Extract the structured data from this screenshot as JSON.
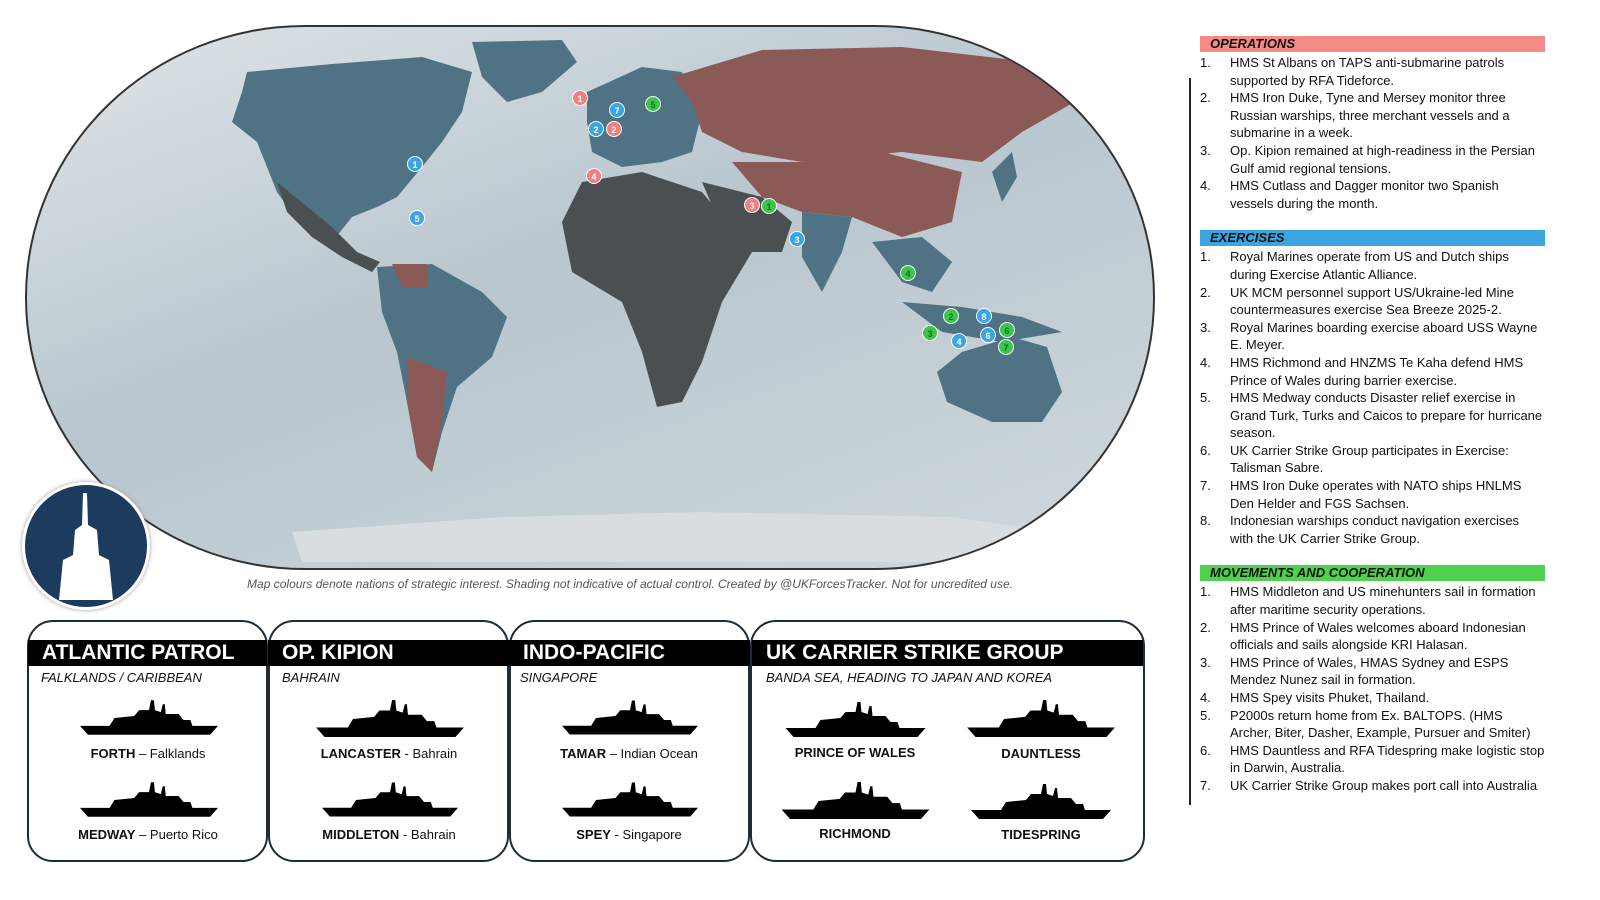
{
  "map": {
    "caption": "Map colours denote nations of strategic interest. Shading not indicative of actual control. Created by @UKForcesTracker. Not for uncredited use.",
    "markers_operations": [
      "1",
      "2",
      "3",
      "4"
    ],
    "markers_exercises": [
      "1",
      "2",
      "3",
      "4",
      "5",
      "6",
      "7",
      "8"
    ],
    "markers_movements": [
      "1",
      "2",
      "3",
      "4",
      "5",
      "6",
      "7"
    ],
    "colors": {
      "operations": "#f07f7f",
      "exercises": "#3aa5e0",
      "movements": "#3ec44a",
      "allied": "#4f7384",
      "neutral": "#4a4f52",
      "adversary": "#8b5a56"
    }
  },
  "cards": [
    {
      "title": "ATLANTIC PATROL",
      "subtitle": "FALKLANDS / CARIBBEAN",
      "ships": [
        {
          "name": "FORTH",
          "loc": " – Falklands"
        },
        {
          "name": "MEDWAY",
          "loc": " – Puerto Rico"
        }
      ]
    },
    {
      "title": "OP. KIPION",
      "subtitle": "BAHRAIN",
      "ships": [
        {
          "name": "LANCASTER",
          "loc": " - Bahrain"
        },
        {
          "name": "MIDDLETON",
          "loc": " - Bahrain"
        }
      ]
    },
    {
      "title": "INDO-PACIFIC",
      "subtitle": "SINGAPORE",
      "ships": [
        {
          "name": "TAMAR",
          "loc": " – Indian Ocean"
        },
        {
          "name": "SPEY",
          "loc": " - Singapore"
        }
      ]
    },
    {
      "title": "UK CARRIER STRIKE GROUP",
      "subtitle": "BANDA SEA, HEADING TO JAPAN AND KOREA",
      "ships": [
        {
          "name": "PRINCE OF WALES",
          "loc": ""
        },
        {
          "name": "DAUNTLESS",
          "loc": ""
        },
        {
          "name": "RICHMOND",
          "loc": ""
        },
        {
          "name": "TIDESPRING",
          "loc": ""
        }
      ]
    }
  ],
  "panel": {
    "operations": {
      "title": "OPERATIONS",
      "items": [
        "HMS St Albans on TAPS anti-submarine patrols supported by RFA Tideforce.",
        "HMS Iron Duke, Tyne and Mersey monitor three Russian warships, three merchant vessels and a submarine in a week.",
        "Op. Kipion remained at high-readiness in the Persian Gulf amid regional tensions.",
        "HMS Cutlass and Dagger monitor two Spanish vessels during the month."
      ]
    },
    "exercises": {
      "title": "EXERCISES",
      "items": [
        "Royal Marines operate from US and Dutch ships during Exercise Atlantic Alliance.",
        "UK MCM personnel support US/Ukraine-led Mine countermeasures exercise Sea Breeze 2025-2.",
        "Royal Marines boarding exercise aboard USS Wayne E. Meyer.",
        "HMS Richmond and HNZMS Te Kaha defend HMS Prince of Wales during barrier exercise.",
        "HMS Medway conducts Disaster relief exercise in Grand Turk, Turks and Caicos to prepare for hurricane season.",
        "UK Carrier Strike Group participates in Exercise: Talisman Sabre.",
        "HMS Iron Duke operates with NATO ships HNLMS Den Helder and FGS Sachsen.",
        "Indonesian warships conduct navigation exercises with the UK Carrier Strike Group."
      ]
    },
    "movements": {
      "title": "MOVEMENTS AND COOPERATION",
      "items": [
        "HMS Middleton and US minehunters sail in formation after maritime security operations.",
        "HMS Prince of Wales welcomes aboard Indonesian officials and sails alongside KRI Halasan.",
        "HMS Prince of Wales, HMAS Sydney and ESPS Mendez Nunez sail in formation.",
        "HMS Spey visits Phuket, Thailand.",
        "P2000s return home from Ex. BALTOPS. (HMS Archer, Biter, Dasher, Example, Pursuer and Smiter)",
        "HMS Dauntless and RFA Tidespring make logistic stop in Darwin, Australia.",
        "UK Carrier Strike Group makes port call into Australia"
      ]
    }
  }
}
